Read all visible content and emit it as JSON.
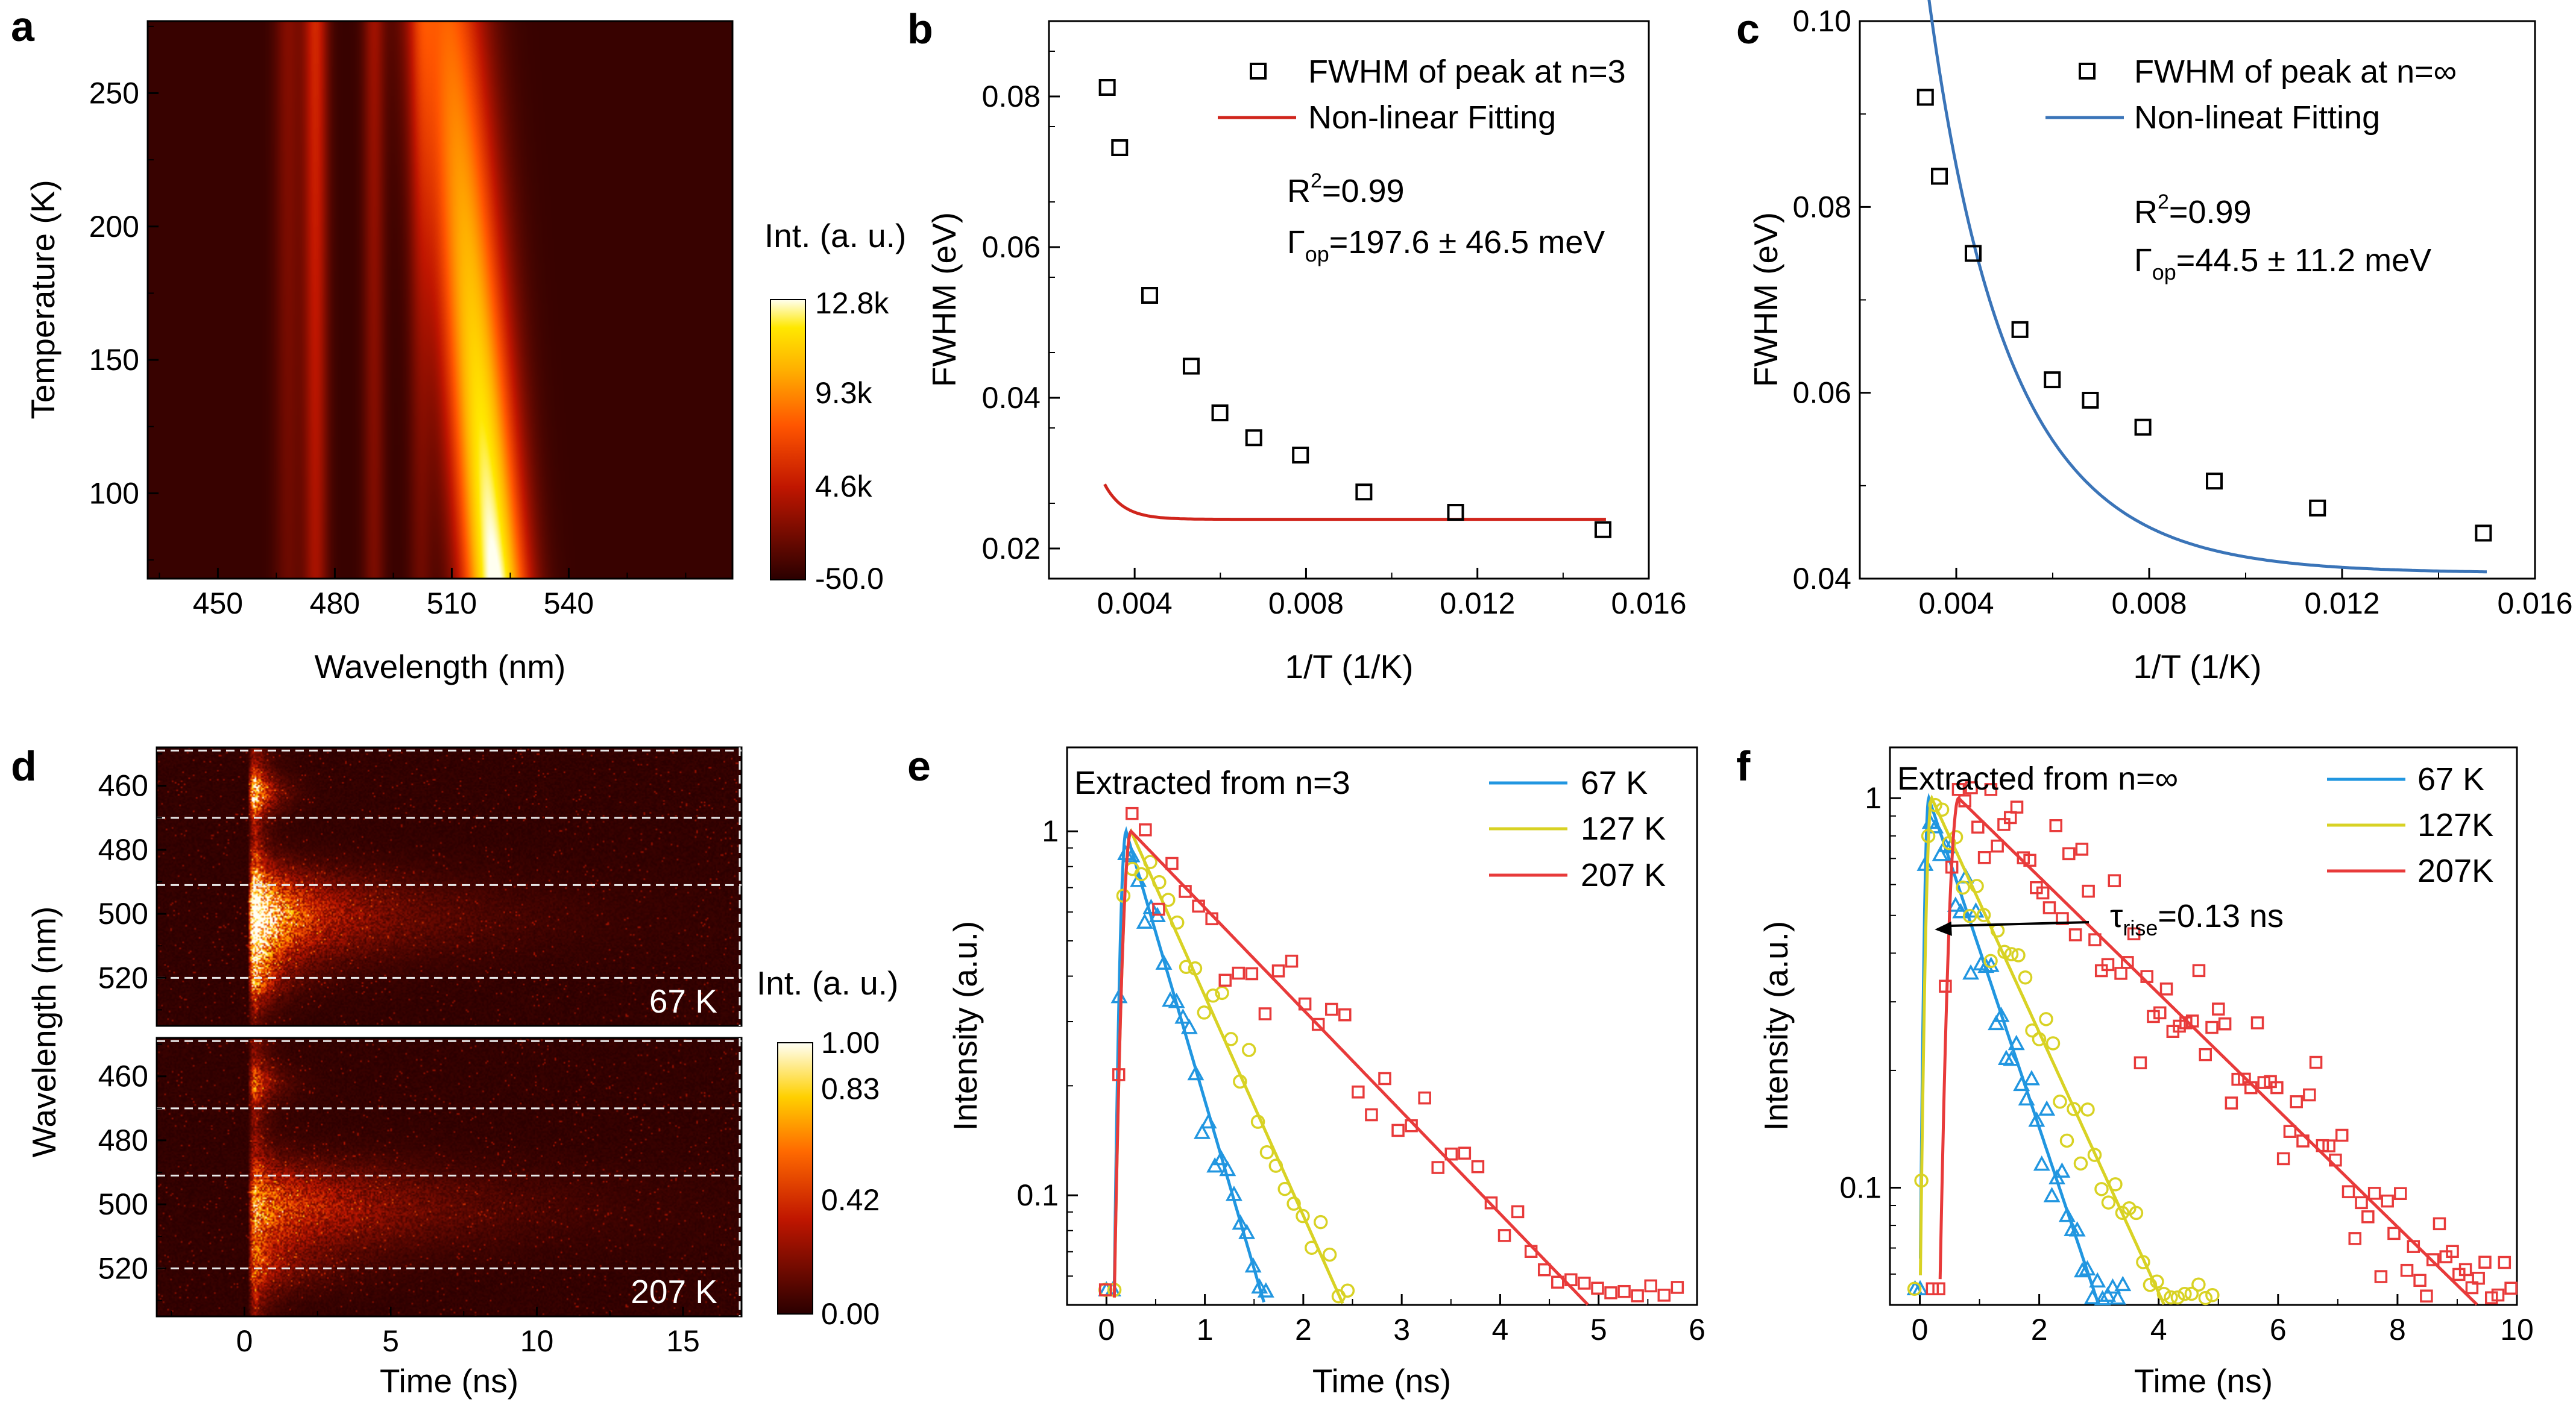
{
  "panels": {
    "a": "a",
    "b": "b",
    "c": "c",
    "d": "d",
    "e": "e",
    "f": "f"
  },
  "colors": {
    "blue": "#2196e0",
    "yellow": "#d8d224",
    "red": "#e83a3a",
    "fit_red": "#d0251c",
    "fit_blue": "#3a74b8"
  },
  "chart_data": [
    {
      "panel": "a",
      "type": "heatmap",
      "xlabel": "Wavelength (nm)",
      "ylabel": "Temperature (K)",
      "xlim": [
        432,
        582
      ],
      "ylim": [
        68,
        277
      ],
      "xticks": [
        450,
        480,
        510,
        540
      ],
      "yticks": [
        100,
        150,
        200,
        250
      ],
      "features": [
        {
          "name": "main-peak",
          "center_at_top_nm": 509,
          "center_at_bottom_nm": 521,
          "width_nm": 6,
          "intensity_top": 0.55,
          "intensity_bottom": 1.0
        },
        {
          "name": "peak-475",
          "center_nm": 475,
          "width_nm": 2.2,
          "intensity": 0.3
        },
        {
          "name": "peak-490",
          "center_nm": 490,
          "width_nm": 2.0,
          "intensity": 0.18
        },
        {
          "name": "peak-468",
          "center_nm": 468,
          "width_nm": 2.5,
          "intensity": 0.14
        },
        {
          "name": "peak-502",
          "center_nm": 502,
          "width_nm": 2.2,
          "intensity": 0.14
        }
      ],
      "colorbar": {
        "title": "Int. (a. u.)",
        "ticks": [
          "-50.0",
          "4.6k",
          "9.3k",
          "12.8k"
        ],
        "min": -50,
        "max": 12800
      }
    },
    {
      "panel": "b",
      "type": "scatter",
      "xlabel": "1/T (1/K)",
      "ylabel": "FWHM (eV)",
      "xlim": [
        0.002,
        0.016
      ],
      "ylim": [
        0.016,
        0.09
      ],
      "xticks": [
        "0.004",
        "0.008",
        "0.012",
        "0.016"
      ],
      "xtick_values": [
        0.004,
        0.008,
        0.012,
        0.016
      ],
      "yticks": [
        "0.02",
        "0.04",
        "0.06",
        "0.08"
      ],
      "ytick_values": [
        0.02,
        0.04,
        0.06,
        0.08
      ],
      "series": [
        {
          "name": "FWHM of peak at n=3",
          "marker": "open-square",
          "x": [
            0.00336,
            0.00365,
            0.00435,
            0.00532,
            0.00599,
            0.00678,
            0.00787,
            0.00935,
            0.01149,
            0.01493
          ],
          "y": [
            0.0812,
            0.0732,
            0.0536,
            0.0442,
            0.038,
            0.0347,
            0.0324,
            0.0275,
            0.0248,
            0.0225
          ]
        },
        {
          "name": "Non-linear Fitting",
          "line": true,
          "color": "#d0251c",
          "fit": {
            "a": 0.02387,
            "b": 9.0,
            "E": 0.1976
          }
        }
      ],
      "annotation": {
        "r2": "R",
        "r2_sup": "2",
        "r2_val": "=0.99",
        "gamma": "Γ",
        "gamma_sub": "op",
        "gamma_val": "=197.6 ± 46.5 meV"
      }
    },
    {
      "panel": "c",
      "type": "scatter",
      "xlabel": "1/T (1/K)",
      "ylabel": "FWHM (eV)",
      "xlim": [
        0.002,
        0.016
      ],
      "ylim": [
        0.04,
        0.1
      ],
      "xticks": [
        "0.004",
        "0.008",
        "0.012",
        "0.016"
      ],
      "xtick_values": [
        0.004,
        0.008,
        0.012,
        0.016
      ],
      "yticks": [
        "0.04",
        "0.06",
        "0.08",
        "0.10"
      ],
      "ytick_values": [
        0.04,
        0.06,
        0.08,
        0.1
      ],
      "series": [
        {
          "name": "FWHM of peak at n=∞",
          "marker": "open-square",
          "x": [
            0.00336,
            0.00365,
            0.00435,
            0.00532,
            0.00599,
            0.00678,
            0.00787,
            0.00935,
            0.01149,
            0.01493
          ],
          "y": [
            0.0918,
            0.0833,
            0.075,
            0.0668,
            0.0614,
            0.0592,
            0.0563,
            0.0505,
            0.0476,
            0.0449
          ]
        },
        {
          "name": "Non-lineat Fitting",
          "line": true,
          "color": "#3a74b8",
          "fit": {
            "a": 0.0406,
            "b": 0.302,
            "E": 0.0445
          }
        }
      ],
      "annotation": {
        "r2": "R",
        "r2_sup": "2",
        "r2_val": "=0.99",
        "gamma": "Γ",
        "gamma_sub": "op",
        "gamma_val": "=44.5 ± 11.2 meV"
      }
    },
    {
      "panel": "d",
      "type": "heatmap",
      "xlabel": "Time (ns)",
      "ylabel": "Wavelength (nm)",
      "xlim": [
        -3,
        17
      ],
      "xticks": [
        0,
        5,
        10,
        15
      ],
      "sub_panels": [
        {
          "label": "67 K",
          "ylim": [
            448,
            535
          ],
          "yticks": [
            460,
            480,
            500,
            520
          ],
          "dashed_lines_nm": [
            449,
            470,
            491,
            520
          ]
        },
        {
          "label": "207 K",
          "ylim": [
            448,
            535
          ],
          "yticks": [
            460,
            480,
            500,
            520
          ],
          "dashed_lines_nm": [
            449,
            470,
            491,
            520
          ]
        }
      ],
      "colorbar": {
        "title": "Int. (a. u.)",
        "ticks": [
          "0.00",
          "0.42",
          "0.83",
          "1.00"
        ],
        "min": 0,
        "max": 1
      }
    },
    {
      "panel": "e",
      "type": "scatter",
      "title": "Extracted from n=3",
      "xlabel": "Time (ns)",
      "ylabel": "Intensity (a.u.)",
      "yscale": "log",
      "xlim": [
        -0.4,
        6
      ],
      "ylim": [
        0.05,
        1.7
      ],
      "xticks": [
        0,
        1,
        2,
        3,
        4,
        5,
        6
      ],
      "yticks": [
        "0.1",
        "1"
      ],
      "ytick_values": [
        0.1,
        1
      ],
      "series": [
        {
          "name": "67 K",
          "color": "#2196e0",
          "marker": "triangle",
          "t0": 0.2,
          "rise": 0.05,
          "tau": 0.47,
          "tmax": 1.62,
          "n": 26,
          "seed": 11,
          "sigma": 0.12
        },
        {
          "name": "127 K",
          "color": "#d8d224",
          "marker": "circle",
          "t0": 0.25,
          "rise": 0.07,
          "tau": 0.72,
          "tmax": 2.45,
          "n": 28,
          "seed": 23,
          "sigma": 0.13
        },
        {
          "name": "207 K",
          "color": "#e83a3a",
          "marker": "square",
          "t0": 0.25,
          "rise": 0.07,
          "tau": 1.55,
          "tmax": 5.8,
          "n": 44,
          "seed": 37,
          "sigma": 0.18
        }
      ]
    },
    {
      "panel": "f",
      "type": "scatter",
      "title": "Extracted from n=∞",
      "xlabel": "Time (ns)",
      "ylabel": "Intensity (a.u.)",
      "yscale": "log",
      "xlim": [
        -0.5,
        10
      ],
      "ylim": [
        0.05,
        1.35
      ],
      "xticks": [
        0,
        2,
        4,
        6,
        8,
        10
      ],
      "yticks": [
        "0.1",
        "1"
      ],
      "ytick_values": [
        0.1,
        1
      ],
      "annotation": {
        "tau": "τ",
        "tau_sub": "rise",
        "tau_val": "=0.13 ns",
        "x": 0.25,
        "y": 0.46
      },
      "series": [
        {
          "name": "67 K",
          "color": "#2196e0",
          "marker": "triangle",
          "t0": 0.15,
          "rise": 0.06,
          "tau": 0.95,
          "tmax": 3.4,
          "n": 42,
          "seed": 51,
          "sigma": 0.12
        },
        {
          "name": "127K",
          "color": "#d8d224",
          "marker": "circle",
          "t0": 0.2,
          "rise": 0.08,
          "tau": 1.3,
          "tmax": 4.9,
          "n": 44,
          "seed": 63,
          "sigma": 0.13
        },
        {
          "name": "207K",
          "color": "#e83a3a",
          "marker": "square",
          "t0": 0.65,
          "rise": 0.13,
          "tau": 2.9,
          "tmax": 9.9,
          "n": 90,
          "seed": 77,
          "sigma": 0.2
        }
      ]
    }
  ]
}
